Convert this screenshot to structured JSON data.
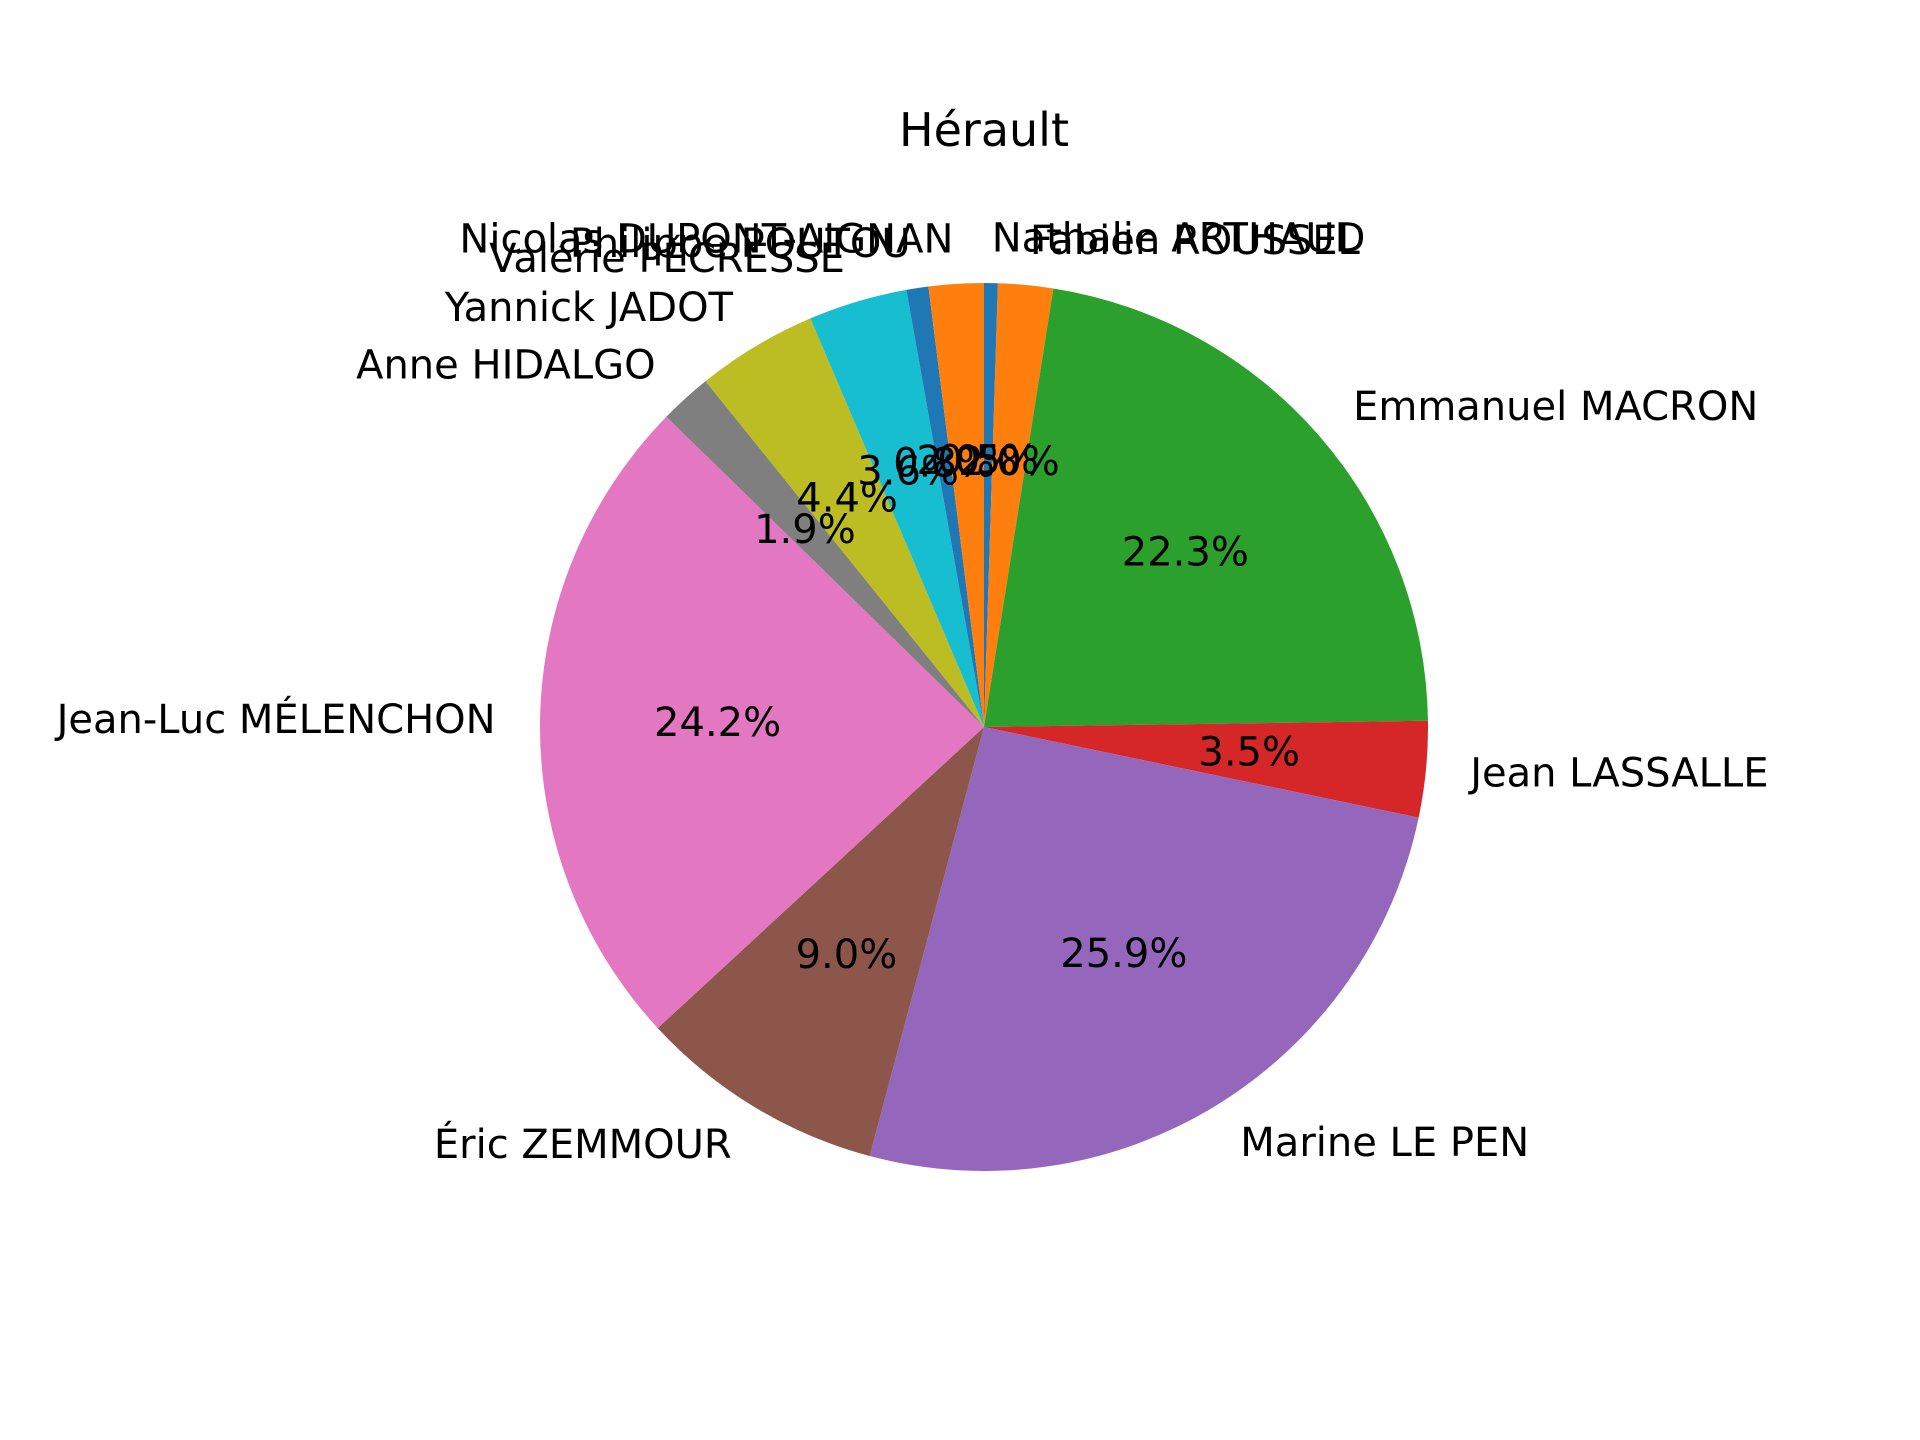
{
  "chart_data": {
    "type": "pie",
    "title": "Hérault",
    "start_angle_deg": 90,
    "direction": "clockwise",
    "slices": [
      {
        "label": "Nathalie ARTHAUD",
        "value": 0.5,
        "pct_label": "0.5%",
        "color": "#1f77b4"
      },
      {
        "label": "Fabien ROUSSEL",
        "value": 2.0,
        "pct_label": "2.0%",
        "color": "#ff7f0e"
      },
      {
        "label": "Emmanuel MACRON",
        "value": 22.3,
        "pct_label": "22.3%",
        "color": "#2ca02c"
      },
      {
        "label": "Jean LASSALLE",
        "value": 3.5,
        "pct_label": "3.5%",
        "color": "#d62728"
      },
      {
        "label": "Marine LE PEN",
        "value": 25.9,
        "pct_label": "25.9%",
        "color": "#9467bd"
      },
      {
        "label": "Éric ZEMMOUR",
        "value": 9.0,
        "pct_label": "9.0%",
        "color": "#8c564b"
      },
      {
        "label": "Jean-Luc MÉLENCHON",
        "value": 24.2,
        "pct_label": "24.2%",
        "color": "#e377c2"
      },
      {
        "label": "Anne HIDALGO",
        "value": 1.9,
        "pct_label": "1.9%",
        "color": "#7f7f7f"
      },
      {
        "label": "Yannick JADOT",
        "value": 4.4,
        "pct_label": "4.4%",
        "color": "#bcbd22"
      },
      {
        "label": "Valérie PÉCRESSE",
        "value": 3.6,
        "pct_label": "3.6%",
        "color": "#17becf"
      },
      {
        "label": "Philippe POUTOU",
        "value": 0.8,
        "pct_label": "0.8%",
        "color": "#1f77b4"
      },
      {
        "label": "Nicolas DUPONT-AIGNAN",
        "value": 2.0,
        "pct_label": "2.0%",
        "color": "#ff7f0e"
      }
    ]
  }
}
